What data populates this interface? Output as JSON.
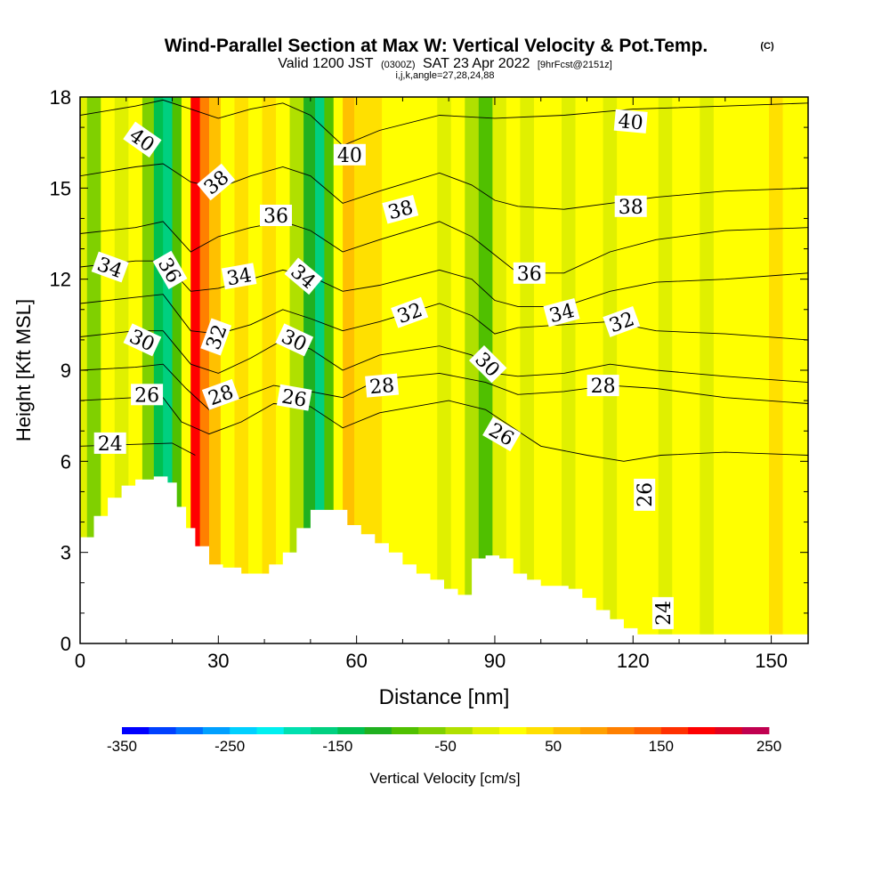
{
  "chart_data": {
    "type": "heatmap",
    "title": "Wind-Parallel Section at Max W: Vertical Velocity & Pot.Temp.",
    "title_mark": "(C)",
    "subtitle": {
      "valid_prefix": "Valid 1200 JST",
      "utc": "(0300Z)",
      "date": "SAT 23 Apr 2022",
      "forecast": "[9hrFcst@2151z]"
    },
    "subtitle2": "i,j,k,angle=27,28,24,88",
    "xlabel": "Distance [nm]",
    "ylabel": "Height [Kft MSL]",
    "xlim": [
      0,
      158
    ],
    "ylim": [
      0,
      18
    ],
    "xticks": [
      0,
      30,
      60,
      90,
      120,
      150
    ],
    "yticks": [
      0,
      3,
      6,
      9,
      12,
      15,
      18
    ],
    "x_minor_step": 10,
    "y_minor_step": 1,
    "colorbar": {
      "label": "Vertical Velocity [cm/s]",
      "min": -350,
      "max": 250,
      "step": 25,
      "tick_labels": [
        -350,
        -250,
        -150,
        -50,
        50,
        150,
        250
      ],
      "colors": [
        "#0000ff",
        "#0040ff",
        "#0070ff",
        "#00a0ff",
        "#00d0ff",
        "#00f0f0",
        "#00e0b0",
        "#00d080",
        "#00c050",
        "#20b020",
        "#50c000",
        "#80d000",
        "#b0e000",
        "#e0f000",
        "#ffff00",
        "#ffe000",
        "#ffc000",
        "#ffa000",
        "#ff8000",
        "#ff6000",
        "#ff3000",
        "#ff0000",
        "#e00020",
        "#c00050",
        "#a00080",
        "#800090",
        "#600090"
      ]
    },
    "w_columns": [
      {
        "x": 0,
        "v": -20
      },
      {
        "x": 3,
        "v": -60
      },
      {
        "x": 6,
        "v": 10
      },
      {
        "x": 9,
        "v": -10
      },
      {
        "x": 12,
        "v": 20
      },
      {
        "x": 15,
        "v": -60
      },
      {
        "x": 17,
        "v": -130
      },
      {
        "x": 19,
        "v": -170
      },
      {
        "x": 21,
        "v": -100
      },
      {
        "x": 23,
        "v": 20
      },
      {
        "x": 25,
        "v": 180
      },
      {
        "x": 27,
        "v": 120
      },
      {
        "x": 29,
        "v": 60
      },
      {
        "x": 32,
        "v": 20
      },
      {
        "x": 35,
        "v": 40
      },
      {
        "x": 38,
        "v": 10
      },
      {
        "x": 41,
        "v": 30
      },
      {
        "x": 44,
        "v": 0
      },
      {
        "x": 47,
        "v": -30
      },
      {
        "x": 50,
        "v": -120
      },
      {
        "x": 52,
        "v": -160
      },
      {
        "x": 54,
        "v": -90
      },
      {
        "x": 56,
        "v": 10
      },
      {
        "x": 58,
        "v": 70
      },
      {
        "x": 61,
        "v": 40
      },
      {
        "x": 64,
        "v": 30
      },
      {
        "x": 67,
        "v": 20
      },
      {
        "x": 70,
        "v": 10
      },
      {
        "x": 73,
        "v": 20
      },
      {
        "x": 76,
        "v": 0
      },
      {
        "x": 79,
        "v": -10
      },
      {
        "x": 82,
        "v": 20
      },
      {
        "x": 85,
        "v": -40
      },
      {
        "x": 88,
        "v": -90
      },
      {
        "x": 91,
        "v": -20
      },
      {
        "x": 94,
        "v": 10
      },
      {
        "x": 97,
        "v": -10
      },
      {
        "x": 100,
        "v": 20
      },
      {
        "x": 103,
        "v": 10
      },
      {
        "x": 106,
        "v": -20
      },
      {
        "x": 109,
        "v": 10
      },
      {
        "x": 112,
        "v": 20
      },
      {
        "x": 115,
        "v": -10
      },
      {
        "x": 118,
        "v": 0
      },
      {
        "x": 121,
        "v": 15
      },
      {
        "x": 124,
        "v": 10
      },
      {
        "x": 127,
        "v": -10
      },
      {
        "x": 130,
        "v": 20
      },
      {
        "x": 133,
        "v": 10
      },
      {
        "x": 136,
        "v": -5
      },
      {
        "x": 139,
        "v": 15
      },
      {
        "x": 142,
        "v": 20
      },
      {
        "x": 145,
        "v": 0
      },
      {
        "x": 148,
        "v": 10
      },
      {
        "x": 151,
        "v": 25
      },
      {
        "x": 154,
        "v": 5
      },
      {
        "x": 158,
        "v": 15
      }
    ],
    "terrain": [
      {
        "x": 0,
        "h": 3.5
      },
      {
        "x": 3,
        "h": 4.2
      },
      {
        "x": 6,
        "h": 4.8
      },
      {
        "x": 9,
        "h": 5.2
      },
      {
        "x": 12,
        "h": 5.4
      },
      {
        "x": 16,
        "h": 5.5
      },
      {
        "x": 19,
        "h": 5.3
      },
      {
        "x": 21,
        "h": 4.5
      },
      {
        "x": 23,
        "h": 3.8
      },
      {
        "x": 25,
        "h": 3.2
      },
      {
        "x": 28,
        "h": 2.6
      },
      {
        "x": 31,
        "h": 2.5
      },
      {
        "x": 35,
        "h": 2.3
      },
      {
        "x": 38,
        "h": 2.3
      },
      {
        "x": 41,
        "h": 2.6
      },
      {
        "x": 44,
        "h": 3.0
      },
      {
        "x": 47,
        "h": 3.8
      },
      {
        "x": 50,
        "h": 4.4
      },
      {
        "x": 56,
        "h": 4.4
      },
      {
        "x": 58,
        "h": 3.9
      },
      {
        "x": 61,
        "h": 3.6
      },
      {
        "x": 64,
        "h": 3.3
      },
      {
        "x": 67,
        "h": 3.0
      },
      {
        "x": 70,
        "h": 2.6
      },
      {
        "x": 73,
        "h": 2.3
      },
      {
        "x": 76,
        "h": 2.1
      },
      {
        "x": 79,
        "h": 1.8
      },
      {
        "x": 82,
        "h": 1.6
      },
      {
        "x": 85,
        "h": 2.8
      },
      {
        "x": 88,
        "h": 2.9
      },
      {
        "x": 91,
        "h": 2.8
      },
      {
        "x": 94,
        "h": 2.3
      },
      {
        "x": 97,
        "h": 2.1
      },
      {
        "x": 100,
        "h": 1.9
      },
      {
        "x": 103,
        "h": 1.9
      },
      {
        "x": 106,
        "h": 1.8
      },
      {
        "x": 109,
        "h": 1.5
      },
      {
        "x": 112,
        "h": 1.1
      },
      {
        "x": 115,
        "h": 0.8
      },
      {
        "x": 118,
        "h": 0.5
      },
      {
        "x": 121,
        "h": 0.3
      },
      {
        "x": 158,
        "h": 0.3
      }
    ],
    "isentropes": [
      {
        "value": 24,
        "points": [
          [
            0,
            6.5
          ],
          [
            10,
            6.55
          ],
          [
            20,
            6.6
          ],
          [
            25,
            6.2
          ]
        ]
      },
      {
        "value": 26,
        "points": [
          [
            0,
            8.0
          ],
          [
            12,
            8.1
          ],
          [
            18,
            8.1
          ],
          [
            22,
            7.3
          ],
          [
            28,
            6.9
          ],
          [
            35,
            7.3
          ],
          [
            42,
            7.9
          ],
          [
            50,
            7.8
          ],
          [
            57,
            7.1
          ],
          [
            65,
            7.6
          ],
          [
            80,
            8.0
          ],
          [
            88,
            7.7
          ],
          [
            95,
            7.0
          ],
          [
            100,
            6.5
          ],
          [
            110,
            6.2
          ],
          [
            118,
            6.0
          ],
          [
            126,
            6.2
          ],
          [
            140,
            6.3
          ],
          [
            158,
            6.2
          ]
        ]
      },
      {
        "value": 28,
        "points": [
          [
            0,
            9.0
          ],
          [
            12,
            9.1
          ],
          [
            18,
            9.2
          ],
          [
            23,
            8.4
          ],
          [
            28,
            7.7
          ],
          [
            35,
            8.1
          ],
          [
            42,
            8.5
          ],
          [
            50,
            8.3
          ],
          [
            57,
            8.1
          ],
          [
            65,
            8.7
          ],
          [
            78,
            8.9
          ],
          [
            88,
            8.6
          ],
          [
            95,
            8.2
          ],
          [
            105,
            8.3
          ],
          [
            115,
            8.5
          ],
          [
            125,
            8.4
          ],
          [
            140,
            8.1
          ],
          [
            158,
            7.9
          ]
        ]
      },
      {
        "value": 30,
        "points": [
          [
            0,
            10.1
          ],
          [
            12,
            10.3
          ],
          [
            18,
            10.3
          ],
          [
            24,
            9.2
          ],
          [
            30,
            8.9
          ],
          [
            37,
            9.4
          ],
          [
            44,
            10.0
          ],
          [
            50,
            9.7
          ],
          [
            57,
            9.0
          ],
          [
            65,
            9.5
          ],
          [
            78,
            9.8
          ],
          [
            85,
            9.5
          ],
          [
            90,
            8.9
          ],
          [
            95,
            8.8
          ],
          [
            105,
            8.9
          ],
          [
            115,
            9.2
          ],
          [
            125,
            9.0
          ],
          [
            140,
            8.8
          ],
          [
            158,
            8.6
          ]
        ]
      },
      {
        "value": 32,
        "points": [
          [
            0,
            11.2
          ],
          [
            12,
            11.4
          ],
          [
            18,
            11.5
          ],
          [
            24,
            10.3
          ],
          [
            30,
            10.2
          ],
          [
            37,
            10.5
          ],
          [
            44,
            11.0
          ],
          [
            50,
            10.7
          ],
          [
            57,
            10.3
          ],
          [
            65,
            10.6
          ],
          [
            78,
            11.2
          ],
          [
            85,
            10.8
          ],
          [
            90,
            10.2
          ],
          [
            95,
            10.4
          ],
          [
            105,
            10.5
          ],
          [
            115,
            10.6
          ],
          [
            125,
            10.3
          ],
          [
            140,
            10.2
          ],
          [
            158,
            10.0
          ]
        ]
      },
      {
        "value": 34,
        "points": [
          [
            0,
            12.4
          ],
          [
            12,
            12.6
          ],
          [
            18,
            12.6
          ],
          [
            24,
            11.6
          ],
          [
            30,
            11.7
          ],
          [
            37,
            12.0
          ],
          [
            44,
            12.3
          ],
          [
            50,
            12.1
          ],
          [
            57,
            11.6
          ],
          [
            65,
            11.8
          ],
          [
            78,
            12.3
          ],
          [
            85,
            12.0
          ],
          [
            90,
            11.3
          ],
          [
            95,
            11.1
          ],
          [
            105,
            11.1
          ],
          [
            115,
            11.6
          ],
          [
            125,
            11.9
          ],
          [
            140,
            12.0
          ],
          [
            158,
            12.2
          ]
        ]
      },
      {
        "value": 36,
        "points": [
          [
            0,
            13.5
          ],
          [
            12,
            13.7
          ],
          [
            18,
            13.9
          ],
          [
            24,
            12.9
          ],
          [
            30,
            13.4
          ],
          [
            37,
            13.7
          ],
          [
            44,
            13.9
          ],
          [
            50,
            13.6
          ],
          [
            57,
            12.9
          ],
          [
            65,
            13.3
          ],
          [
            78,
            13.9
          ],
          [
            85,
            13.4
          ],
          [
            90,
            12.8
          ],
          [
            95,
            12.2
          ],
          [
            105,
            12.2
          ],
          [
            115,
            12.9
          ],
          [
            125,
            13.3
          ],
          [
            140,
            13.6
          ],
          [
            158,
            13.7
          ]
        ]
      },
      {
        "value": 38,
        "points": [
          [
            0,
            15.4
          ],
          [
            12,
            15.7
          ],
          [
            18,
            15.8
          ],
          [
            24,
            15.2
          ],
          [
            30,
            15.0
          ],
          [
            37,
            15.4
          ],
          [
            44,
            15.7
          ],
          [
            50,
            15.4
          ],
          [
            57,
            14.5
          ],
          [
            65,
            14.9
          ],
          [
            78,
            15.5
          ],
          [
            85,
            15.1
          ],
          [
            90,
            14.6
          ],
          [
            95,
            14.4
          ],
          [
            105,
            14.3
          ],
          [
            115,
            14.5
          ],
          [
            125,
            14.7
          ],
          [
            140,
            14.9
          ],
          [
            158,
            15.0
          ]
        ]
      },
      {
        "value": 40,
        "points": [
          [
            0,
            17.4
          ],
          [
            12,
            17.7
          ],
          [
            18,
            17.9
          ],
          [
            24,
            17.6
          ],
          [
            30,
            17.3
          ],
          [
            37,
            17.6
          ],
          [
            44,
            17.8
          ],
          [
            50,
            17.4
          ],
          [
            57,
            16.4
          ],
          [
            65,
            16.9
          ],
          [
            78,
            17.4
          ],
          [
            90,
            17.3
          ],
          [
            105,
            17.4
          ],
          [
            120,
            17.6
          ],
          [
            140,
            17.7
          ],
          [
            158,
            17.8
          ]
        ]
      }
    ],
    "contour_labels": [
      {
        "text": "40",
        "x": 13.5,
        "y": 16.6,
        "angle": 35
      },
      {
        "text": "38",
        "x": 29.5,
        "y": 15.2,
        "angle": -40
      },
      {
        "text": "40",
        "x": 58.5,
        "y": 16.1,
        "angle": 0
      },
      {
        "text": "40",
        "x": 119.5,
        "y": 17.2,
        "angle": 5
      },
      {
        "text": "38",
        "x": 69.5,
        "y": 14.3,
        "angle": -15
      },
      {
        "text": "38",
        "x": 119.5,
        "y": 14.4,
        "angle": 0
      },
      {
        "text": "36",
        "x": 42.5,
        "y": 14.1,
        "angle": 0
      },
      {
        "text": "34",
        "x": 6.5,
        "y": 12.4,
        "angle": 20
      },
      {
        "text": "36",
        "x": 19.5,
        "y": 12.3,
        "angle": 60
      },
      {
        "text": "34",
        "x": 34.5,
        "y": 12.1,
        "angle": -10
      },
      {
        "text": "34",
        "x": 48.5,
        "y": 12.1,
        "angle": 40
      },
      {
        "text": "36",
        "x": 97.5,
        "y": 12.2,
        "angle": 0
      },
      {
        "text": "32",
        "x": 29.5,
        "y": 10.1,
        "angle": -70
      },
      {
        "text": "32",
        "x": 71.5,
        "y": 10.9,
        "angle": -20
      },
      {
        "text": "34",
        "x": 104.5,
        "y": 10.9,
        "angle": -15
      },
      {
        "text": "32",
        "x": 117.5,
        "y": 10.6,
        "angle": -20
      },
      {
        "text": "30",
        "x": 13.5,
        "y": 10.0,
        "angle": 25
      },
      {
        "text": "30",
        "x": 46.5,
        "y": 10.0,
        "angle": 25
      },
      {
        "text": "30",
        "x": 88.5,
        "y": 9.2,
        "angle": 45
      },
      {
        "text": "26",
        "x": 14.5,
        "y": 8.2,
        "angle": 0
      },
      {
        "text": "28",
        "x": 30.5,
        "y": 8.2,
        "angle": -20
      },
      {
        "text": "26",
        "x": 46.5,
        "y": 8.1,
        "angle": 10
      },
      {
        "text": "28",
        "x": 65.5,
        "y": 8.5,
        "angle": -5
      },
      {
        "text": "28",
        "x": 113.5,
        "y": 8.5,
        "angle": 0
      },
      {
        "text": "26",
        "x": 91.5,
        "y": 6.9,
        "angle": 30
      },
      {
        "text": "24",
        "x": 6.5,
        "y": 6.6,
        "angle": 0
      },
      {
        "text": "26",
        "x": 122.5,
        "y": 4.9,
        "angle": -90
      },
      {
        "text": "24",
        "x": 126.5,
        "y": 1.0,
        "angle": -90
      }
    ]
  }
}
